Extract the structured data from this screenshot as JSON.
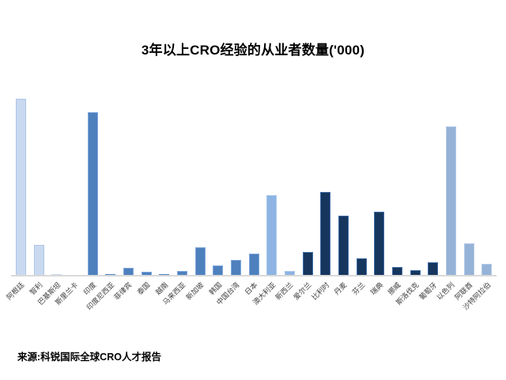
{
  "page": {
    "background": "#ffffff"
  },
  "chart_data": {
    "type": "bar",
    "title": "3年以上CRO经验的从业者数量('000)",
    "source": "来源:科锐国际全球CRO人才报告",
    "categories": [
      "阿根廷",
      "智利",
      "巴基斯坦",
      "斯里兰卡",
      "印度",
      "印度尼西亚",
      "菲律宾",
      "泰国",
      "越南",
      "马来西亚",
      "新加坡",
      "韩国",
      "中国台湾",
      "日本",
      "澳大利亚",
      "新西兰",
      "爱尔兰",
      "比利时",
      "丹麦",
      "芬兰",
      "瑞典",
      "挪威",
      "斯洛伐克",
      "葡萄牙",
      "以色列",
      "阿联酋",
      "沙特阿拉伯"
    ],
    "values": [
      224,
      39,
      2,
      0.5,
      207,
      2,
      10,
      5,
      2,
      6,
      36,
      13,
      20,
      28,
      102,
      6,
      30,
      106,
      76,
      22,
      81,
      11,
      7,
      17,
      189,
      41,
      15
    ],
    "units": "relative-estimate ('000 implied by title; y-axis unlabeled)",
    "ylim": [
      0,
      240
    ],
    "xlabel": "",
    "ylabel": "",
    "grid": false,
    "legend": "none",
    "y_axis_visible": false,
    "groups": [
      "americas_south_asia",
      "americas_south_asia",
      "americas_south_asia",
      "americas_south_asia",
      "asia_pacific",
      "asia_pacific",
      "asia_pacific",
      "asia_pacific",
      "asia_pacific",
      "asia_pacific",
      "asia_pacific",
      "asia_pacific",
      "asia_pacific",
      "asia_pacific",
      "oceania",
      "oceania",
      "europe",
      "europe",
      "europe",
      "europe",
      "europe",
      "europe",
      "europe",
      "europe",
      "middle_east",
      "middle_east",
      "middle_east"
    ],
    "group_colors": {
      "americas_south_asia": {
        "fill": "#c9d9ef",
        "border": "#adc5e7"
      },
      "asia_pacific": {
        "fill": "#4e80bd",
        "border": "#7fa8dd"
      },
      "oceania": {
        "fill": "#8db4e2",
        "border": "#aac9ee"
      },
      "europe": {
        "fill": "#16365d",
        "border": "#3f6da8"
      },
      "middle_east": {
        "fill": "#95b3d7",
        "border": "#b4c9e6"
      }
    },
    "axis_line_color": "#d9d9d9"
  }
}
